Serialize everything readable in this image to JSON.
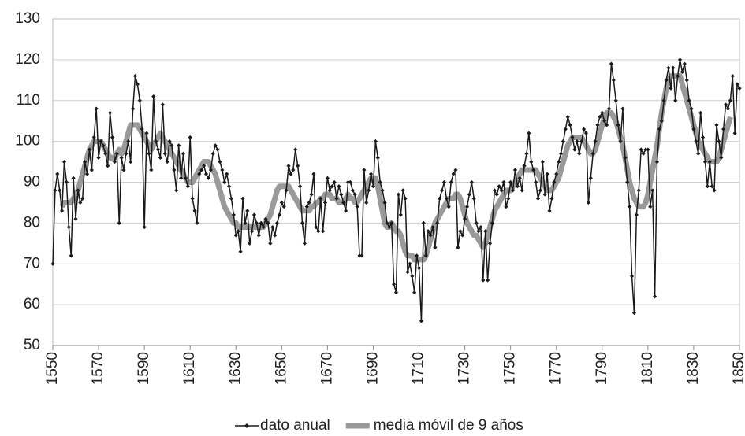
{
  "chart_data": {
    "type": "line",
    "x": [
      1550,
      1551,
      1552,
      1553,
      1554,
      1555,
      1556,
      1557,
      1558,
      1559,
      1560,
      1561,
      1562,
      1563,
      1564,
      1565,
      1566,
      1567,
      1568,
      1569,
      1570,
      1571,
      1572,
      1573,
      1574,
      1575,
      1576,
      1577,
      1578,
      1579,
      1580,
      1581,
      1582,
      1583,
      1584,
      1585,
      1586,
      1587,
      1588,
      1589,
      1590,
      1591,
      1592,
      1593,
      1594,
      1595,
      1596,
      1597,
      1598,
      1599,
      1600,
      1601,
      1602,
      1603,
      1604,
      1605,
      1606,
      1607,
      1608,
      1609,
      1610,
      1611,
      1612,
      1613,
      1614,
      1615,
      1616,
      1617,
      1618,
      1619,
      1620,
      1621,
      1622,
      1623,
      1624,
      1625,
      1626,
      1627,
      1628,
      1629,
      1630,
      1631,
      1632,
      1633,
      1634,
      1635,
      1636,
      1637,
      1638,
      1639,
      1640,
      1641,
      1642,
      1643,
      1644,
      1645,
      1646,
      1647,
      1648,
      1649,
      1650,
      1651,
      1652,
      1653,
      1654,
      1655,
      1656,
      1657,
      1658,
      1659,
      1660,
      1661,
      1662,
      1663,
      1664,
      1665,
      1666,
      1667,
      1668,
      1669,
      1670,
      1671,
      1672,
      1673,
      1674,
      1675,
      1676,
      1677,
      1678,
      1679,
      1680,
      1681,
      1682,
      1683,
      1684,
      1685,
      1686,
      1687,
      1688,
      1689,
      1690,
      1691,
      1692,
      1693,
      1694,
      1695,
      1696,
      1697,
      1698,
      1699,
      1700,
      1701,
      1702,
      1703,
      1704,
      1705,
      1706,
      1707,
      1708,
      1709,
      1710,
      1711,
      1712,
      1713,
      1714,
      1715,
      1716,
      1717,
      1718,
      1719,
      1720,
      1721,
      1722,
      1723,
      1724,
      1725,
      1726,
      1727,
      1728,
      1729,
      1730,
      1731,
      1732,
      1733,
      1734,
      1735,
      1736,
      1737,
      1738,
      1739,
      1740,
      1741,
      1742,
      1743,
      1744,
      1745,
      1746,
      1747,
      1748,
      1749,
      1750,
      1751,
      1752,
      1753,
      1754,
      1755,
      1756,
      1757,
      1758,
      1759,
      1760,
      1761,
      1762,
      1763,
      1764,
      1765,
      1766,
      1767,
      1768,
      1769,
      1770,
      1771,
      1772,
      1773,
      1774,
      1775,
      1776,
      1777,
      1778,
      1779,
      1780,
      1781,
      1782,
      1783,
      1784,
      1785,
      1786,
      1787,
      1788,
      1789,
      1790,
      1791,
      1792,
      1793,
      1794,
      1795,
      1796,
      1797,
      1798,
      1799,
      1800,
      1801,
      1802,
      1803,
      1804,
      1805,
      1806,
      1807,
      1808,
      1809,
      1810,
      1811,
      1812,
      1813,
      1814,
      1815,
      1816,
      1817,
      1818,
      1819,
      1820,
      1821,
      1822,
      1823,
      1824,
      1825,
      1826,
      1827,
      1828,
      1829,
      1830,
      1831,
      1832,
      1833,
      1834,
      1835,
      1836,
      1837,
      1838,
      1839,
      1840,
      1841,
      1842,
      1843,
      1844,
      1845,
      1846,
      1847,
      1848,
      1849,
      1850
    ],
    "series": [
      {
        "name": "dato anual",
        "color": "#1a1a1a",
        "values": [
          70,
          88,
          92,
          88,
          83,
          95,
          90,
          79,
          72,
          91,
          81,
          88,
          85,
          86,
          95,
          92,
          98,
          93,
          101,
          108,
          96,
          100,
          99,
          97,
          94,
          107,
          101,
          95,
          97,
          80,
          96,
          93,
          97,
          100,
          95,
          108,
          116,
          114,
          110,
          103,
          79,
          102,
          97,
          93,
          111,
          100,
          98,
          96,
          109,
          97,
          95,
          100,
          99,
          93,
          88,
          99,
          91,
          97,
          91,
          89,
          101,
          86,
          83,
          80,
          92,
          93,
          94,
          92,
          91,
          93,
          97,
          99,
          98,
          95,
          93,
          90,
          92,
          89,
          86,
          82,
          77,
          78,
          73,
          86,
          80,
          83,
          75,
          78,
          82,
          80,
          77,
          80,
          79,
          81,
          80,
          75,
          79,
          77,
          80,
          82,
          85,
          84,
          88,
          94,
          92,
          93,
          98,
          94,
          89,
          80,
          75,
          84,
          85,
          87,
          92,
          79,
          78,
          86,
          78,
          85,
          91,
          88,
          89,
          90,
          86,
          89,
          87,
          85,
          83,
          90,
          90,
          88,
          87,
          84,
          72,
          72,
          93,
          85,
          88,
          92,
          89,
          100,
          96,
          90,
          88,
          85,
          80,
          79,
          80,
          65,
          63,
          87,
          82,
          88,
          86,
          68,
          70,
          67,
          63,
          72,
          69,
          56,
          80,
          72,
          78,
          77,
          79,
          74,
          80,
          86,
          88,
          90,
          86,
          84,
          90,
          92,
          93,
          74,
          78,
          77,
          81,
          84,
          87,
          90,
          86,
          80,
          78,
          79,
          66,
          78,
          66,
          75,
          80,
          88,
          87,
          89,
          88,
          90,
          84,
          86,
          90,
          88,
          93,
          89,
          91,
          88,
          94,
          97,
          102,
          95,
          93,
          90,
          86,
          88,
          95,
          87,
          92,
          83,
          86,
          90,
          92,
          95,
          97,
          100,
          103,
          106,
          104,
          101,
          98,
          100,
          97,
          100,
          103,
          102,
          85,
          91,
          97,
          100,
          104,
          106,
          107,
          105,
          104,
          108,
          119,
          115,
          110,
          104,
          100,
          108,
          96,
          90,
          84,
          67,
          58,
          82,
          88,
          98,
          97,
          98,
          98,
          84,
          88,
          62,
          95,
          103,
          105,
          110,
          115,
          118,
          113,
          118,
          110,
          116,
          120,
          117,
          119,
          115,
          110,
          108,
          103,
          100,
          97,
          107,
          101,
          95,
          89,
          95,
          89,
          88,
          104,
          100,
          96,
          103,
          109,
          108,
          110,
          116,
          102,
          114,
          113
        ]
      },
      {
        "name": "media móvil de 9 años",
        "color": "#999999",
        "values": [
          null,
          null,
          null,
          null,
          84,
          85,
          85,
          85,
          85,
          86,
          86,
          88,
          90,
          92,
          94,
          96,
          98,
          99,
          100,
          100,
          100,
          100,
          99,
          98,
          97,
          96,
          96,
          96,
          97,
          98,
          97,
          98,
          100,
          102,
          104,
          104,
          104,
          104,
          103,
          102,
          101,
          100,
          99,
          98,
          99,
          100,
          101,
          102,
          101,
          100,
          99,
          98,
          97,
          96,
          95,
          94,
          93,
          92,
          91,
          90,
          90,
          90,
          91,
          92,
          93,
          94,
          95,
          95,
          95,
          94,
          93,
          92,
          90,
          88,
          86,
          84,
          83,
          82,
          81,
          80,
          80,
          79,
          79,
          79,
          79,
          79,
          79,
          79,
          79,
          79,
          79,
          79,
          79,
          80,
          81,
          82,
          84,
          86,
          88,
          89,
          89,
          89,
          89,
          89,
          88,
          87,
          86,
          85,
          84,
          83,
          83,
          83,
          83,
          84,
          84,
          85,
          85,
          86,
          86,
          87,
          87,
          87,
          86,
          86,
          86,
          85,
          85,
          85,
          86,
          87,
          86,
          86,
          85,
          85,
          86,
          87,
          88,
          89,
          90,
          91,
          91,
          91,
          89,
          86,
          83,
          80,
          79,
          79,
          80,
          79,
          78,
          78,
          77,
          75,
          73,
          72,
          72,
          72,
          71,
          71,
          71,
          71,
          71,
          72,
          74,
          76,
          78,
          80,
          81,
          82,
          83,
          84,
          85,
          86,
          86,
          86,
          87,
          87,
          86,
          84,
          82,
          80,
          79,
          78,
          77,
          77,
          76,
          75,
          74,
          75,
          77,
          79,
          81,
          83,
          84,
          85,
          86,
          87,
          88,
          88,
          88,
          89,
          90,
          91,
          92,
          93,
          93,
          93,
          93,
          93,
          93,
          93,
          92,
          91,
          90,
          89,
          88,
          88,
          88,
          89,
          90,
          91,
          93,
          95,
          97,
          99,
          100,
          101,
          101,
          101,
          101,
          101,
          100,
          99,
          98,
          97,
          97,
          98,
          100,
          102,
          104,
          106,
          107,
          107,
          107,
          106,
          105,
          103,
          101,
          99,
          96,
          93,
          90,
          88,
          86,
          85,
          84,
          84,
          84,
          85,
          87,
          90,
          93,
          96,
          99,
          103,
          107,
          110,
          113,
          115,
          116,
          116,
          116,
          116,
          116,
          114,
          112,
          110,
          108,
          106,
          104,
          102,
          100,
          99,
          98,
          97,
          96,
          95,
          95,
          95,
          95,
          96,
          98,
          100,
          102,
          104,
          106,
          null,
          null,
          null,
          null
        ]
      }
    ],
    "xlim": [
      1550,
      1850
    ],
    "xticks": [
      1550,
      1570,
      1590,
      1610,
      1630,
      1650,
      1670,
      1690,
      1710,
      1730,
      1750,
      1770,
      1790,
      1810,
      1830,
      1850
    ],
    "ylim": [
      50,
      130
    ],
    "yticks": [
      50,
      60,
      70,
      80,
      90,
      100,
      110,
      120,
      130
    ],
    "grid": true,
    "legend": "bottom"
  }
}
